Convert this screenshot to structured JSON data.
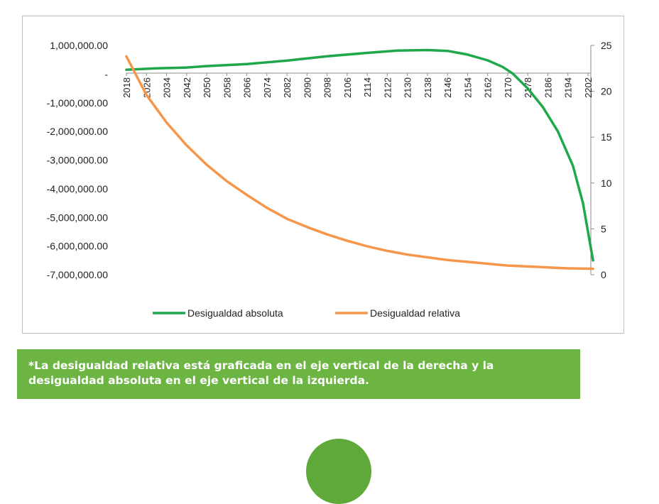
{
  "chart_data": {
    "type": "line",
    "title": "",
    "x_ticks": [
      "2018",
      "2026",
      "2034",
      "2042",
      "2050",
      "2058",
      "2066",
      "2074",
      "2082",
      "2090",
      "2098",
      "2106",
      "2114",
      "2122",
      "2130",
      "2138",
      "2146",
      "2154",
      "2162",
      "2170",
      "2178",
      "2186",
      "2194",
      "2202"
    ],
    "x_range": [
      2018,
      2202
    ],
    "left_axis": {
      "range": [
        -7000000,
        1000000
      ],
      "ticks": [
        1000000,
        0,
        -1000000,
        -2000000,
        -3000000,
        -4000000,
        -5000000,
        -6000000,
        -7000000
      ],
      "tick_labels": [
        "1,000,000.00",
        "-",
        "-1,000,000.00",
        "-2,000,000.00",
        "-3,000,000.00",
        "-4,000,000.00",
        "-5,000,000.00",
        "-6,000,000.00",
        "-7,000,000.00"
      ]
    },
    "right_axis": {
      "range": [
        0,
        25
      ],
      "ticks": [
        25,
        20,
        15,
        10,
        5,
        0
      ],
      "tick_labels": [
        "25",
        "20",
        "15",
        "10",
        "5",
        "0"
      ]
    },
    "grid": false,
    "legend_position": "bottom",
    "series": [
      {
        "name": "Desigualdad absoluta",
        "axis": "left",
        "color": "#1fa84a",
        "points": [
          [
            2018,
            150000
          ],
          [
            2030,
            200000
          ],
          [
            2042,
            230000
          ],
          [
            2050,
            280000
          ],
          [
            2066,
            350000
          ],
          [
            2082,
            470000
          ],
          [
            2098,
            620000
          ],
          [
            2114,
            740000
          ],
          [
            2126,
            820000
          ],
          [
            2138,
            840000
          ],
          [
            2146,
            810000
          ],
          [
            2154,
            680000
          ],
          [
            2162,
            480000
          ],
          [
            2168,
            250000
          ],
          [
            2172,
            20000
          ],
          [
            2178,
            -500000
          ],
          [
            2184,
            -1150000
          ],
          [
            2190,
            -2000000
          ],
          [
            2196,
            -3200000
          ],
          [
            2200,
            -4500000
          ],
          [
            2204,
            -6500000
          ]
        ]
      },
      {
        "name": "Desigualdad relativa",
        "axis": "right",
        "color": "#f5964a",
        "points": [
          [
            2018,
            23.8
          ],
          [
            2026,
            19.6
          ],
          [
            2034,
            16.6
          ],
          [
            2042,
            14.1
          ],
          [
            2050,
            12.0
          ],
          [
            2058,
            10.2
          ],
          [
            2066,
            8.7
          ],
          [
            2074,
            7.3
          ],
          [
            2082,
            6.1
          ],
          [
            2090,
            5.2
          ],
          [
            2098,
            4.4
          ],
          [
            2106,
            3.7
          ],
          [
            2114,
            3.1
          ],
          [
            2122,
            2.6
          ],
          [
            2130,
            2.2
          ],
          [
            2138,
            1.9
          ],
          [
            2146,
            1.6
          ],
          [
            2154,
            1.4
          ],
          [
            2162,
            1.2
          ],
          [
            2170,
            1.0
          ],
          [
            2178,
            0.9
          ],
          [
            2186,
            0.8
          ],
          [
            2194,
            0.7
          ],
          [
            2204,
            0.65
          ]
        ]
      }
    ]
  },
  "note": {
    "line1": "*La desigualdad relativa está graficada en el eje vertical de la derecha y la",
    "line2": "desigualdad absoluta en el eje vertical de la izquierda."
  },
  "colors": {
    "note_background": "#6cb543",
    "circle": "#5fa93a"
  }
}
